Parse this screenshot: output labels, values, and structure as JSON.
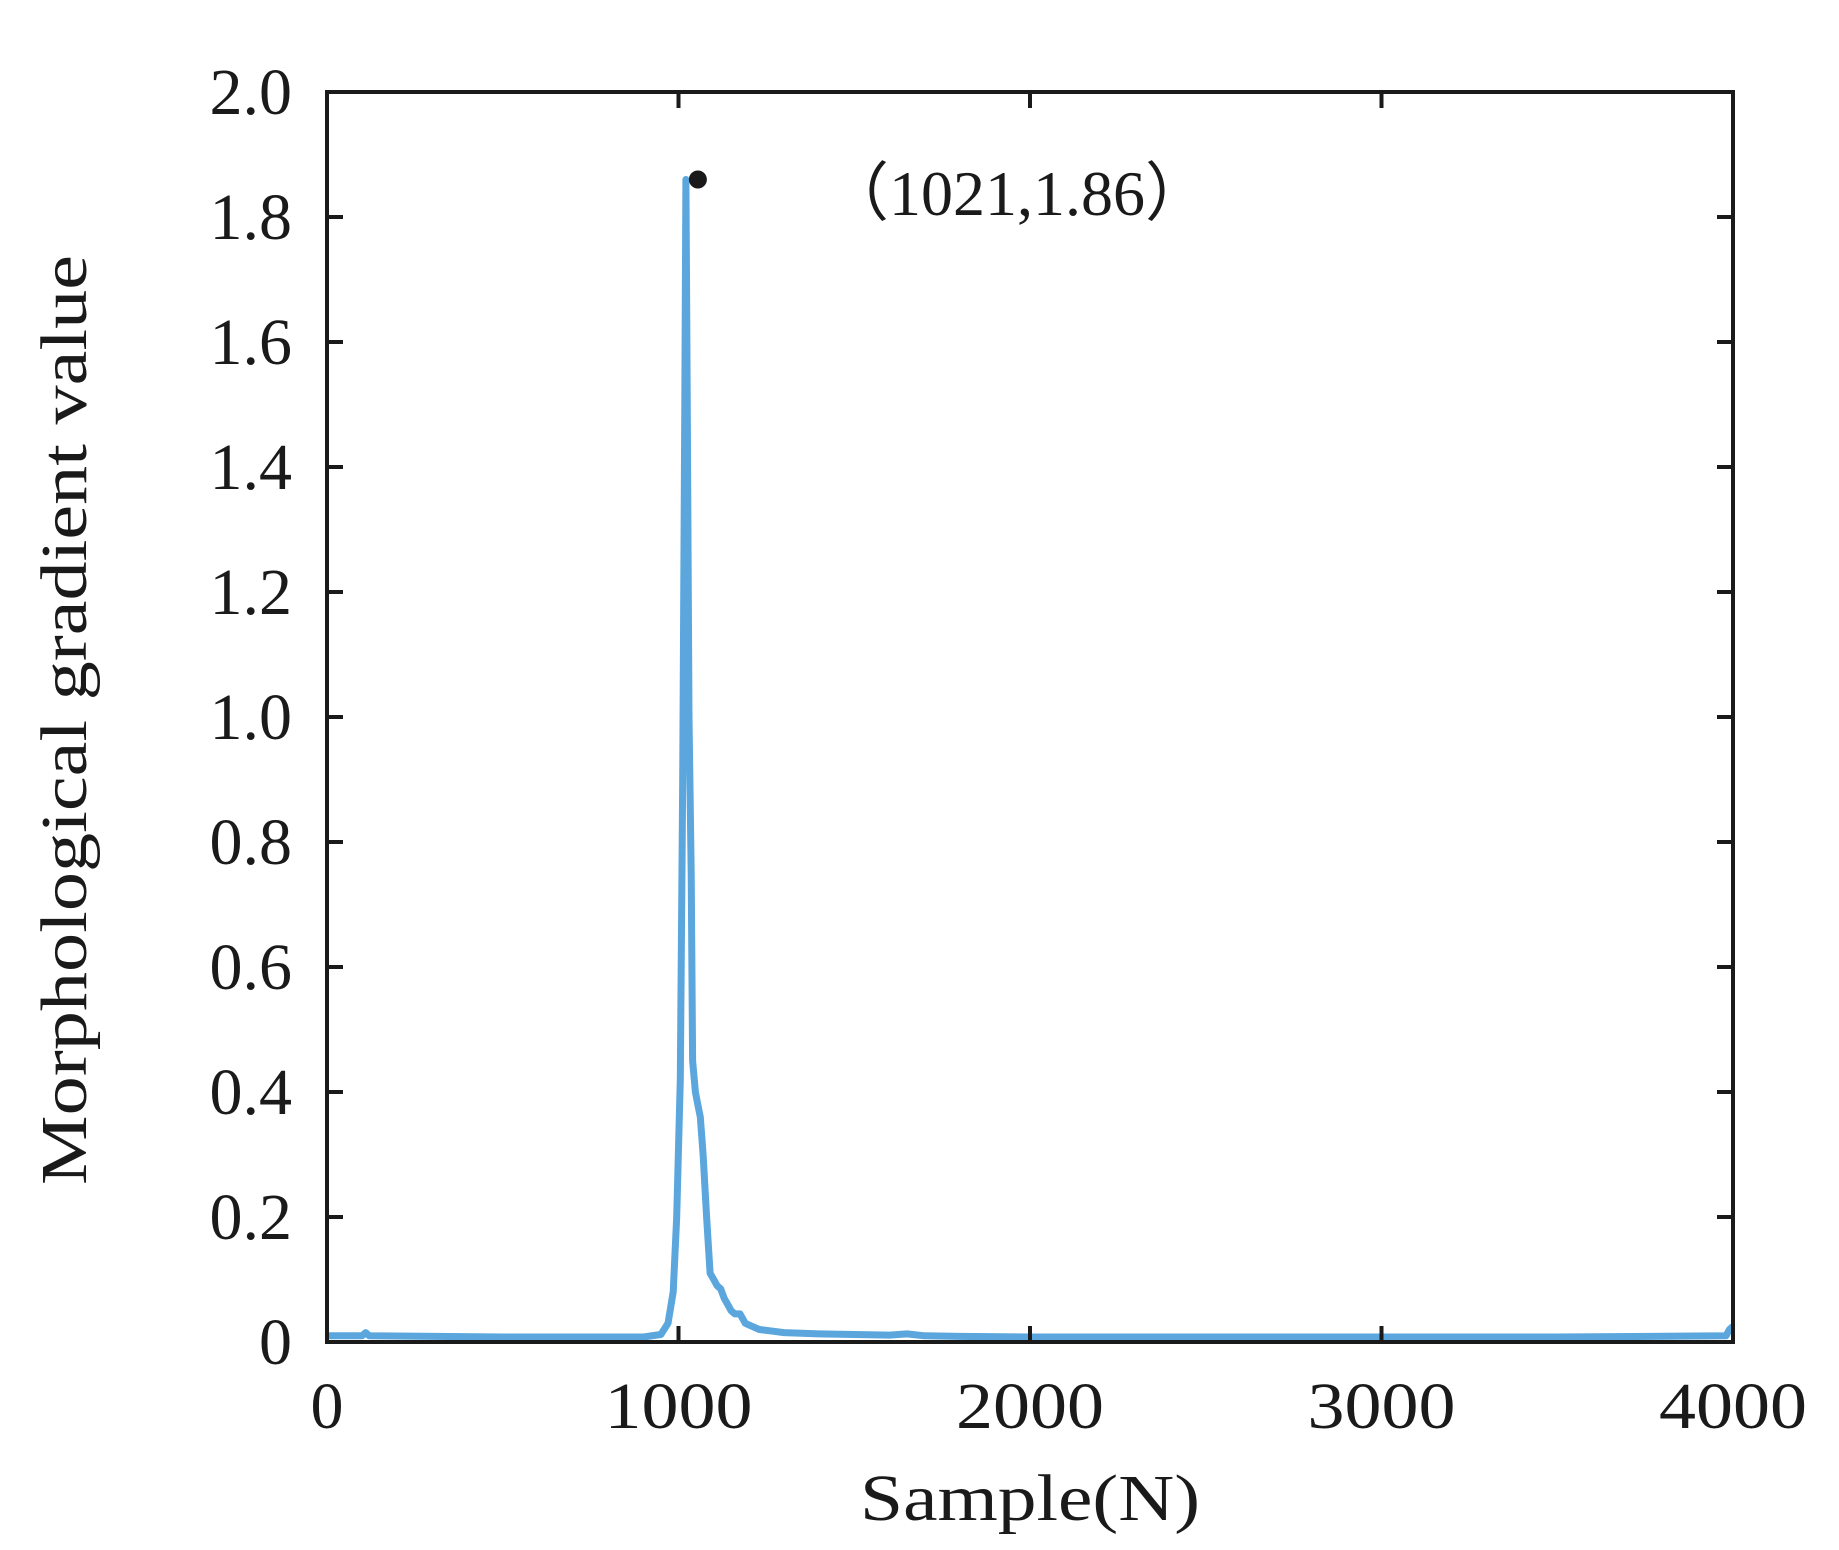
{
  "chart_data": {
    "type": "line",
    "title": "",
    "xlabel": "Sample(N)",
    "ylabel": "Morphological gradient value",
    "xlim": [
      0,
      4000
    ],
    "ylim": [
      0,
      2.0
    ],
    "xticks": [
      0,
      1000,
      2000,
      3000,
      4000
    ],
    "xtick_labels": [
      "0",
      "1000",
      "2000",
      "3000",
      "4000"
    ],
    "yticks": [
      0,
      0.2,
      0.4,
      0.6,
      0.8,
      1.0,
      1.2,
      1.4,
      1.6,
      1.8,
      2.0
    ],
    "ytick_labels": [
      "0",
      "0.2",
      "0.4",
      "0.6",
      "0.8",
      "1.0",
      "1.2",
      "1.4",
      "1.6",
      "1.8",
      "2.0"
    ],
    "grid": false,
    "legend": null,
    "series": [
      {
        "name": "Morphological gradient",
        "color": "#5aa6dd",
        "x": [
          0,
          100,
          110,
          120,
          500,
          900,
          950,
          970,
          985,
          995,
          1005,
          1012,
          1018,
          1021,
          1024,
          1030,
          1036,
          1040,
          1048,
          1055,
          1062,
          1070,
          1080,
          1090,
          1100,
          1110,
          1120,
          1130,
          1140,
          1150,
          1160,
          1175,
          1190,
          1210,
          1230,
          1260,
          1300,
          1350,
          1400,
          1500,
          1600,
          1650,
          1700,
          1800,
          2000,
          2500,
          3000,
          3500,
          3980,
          3990,
          4000
        ],
        "y": [
          0.01,
          0.01,
          0.015,
          0.01,
          0.008,
          0.008,
          0.012,
          0.03,
          0.08,
          0.2,
          0.42,
          0.9,
          1.5,
          1.86,
          1.6,
          1.0,
          0.75,
          0.45,
          0.4,
          0.38,
          0.36,
          0.3,
          0.2,
          0.11,
          0.1,
          0.09,
          0.085,
          0.07,
          0.06,
          0.05,
          0.045,
          0.045,
          0.03,
          0.025,
          0.02,
          0.018,
          0.015,
          0.014,
          0.013,
          0.012,
          0.011,
          0.013,
          0.01,
          0.009,
          0.008,
          0.008,
          0.008,
          0.008,
          0.01,
          0.02,
          0.025
        ]
      }
    ],
    "annotations": [
      {
        "text": "（1021,1.86）",
        "x": 1021,
        "y": 1.86,
        "marker": "dot",
        "marker_color": "#1a1a1a"
      }
    ]
  },
  "labels": {
    "xlabel": "Sample(N)",
    "ylabel": "Morphological gradient value",
    "peak_annotation": "（1021,1.86）"
  }
}
